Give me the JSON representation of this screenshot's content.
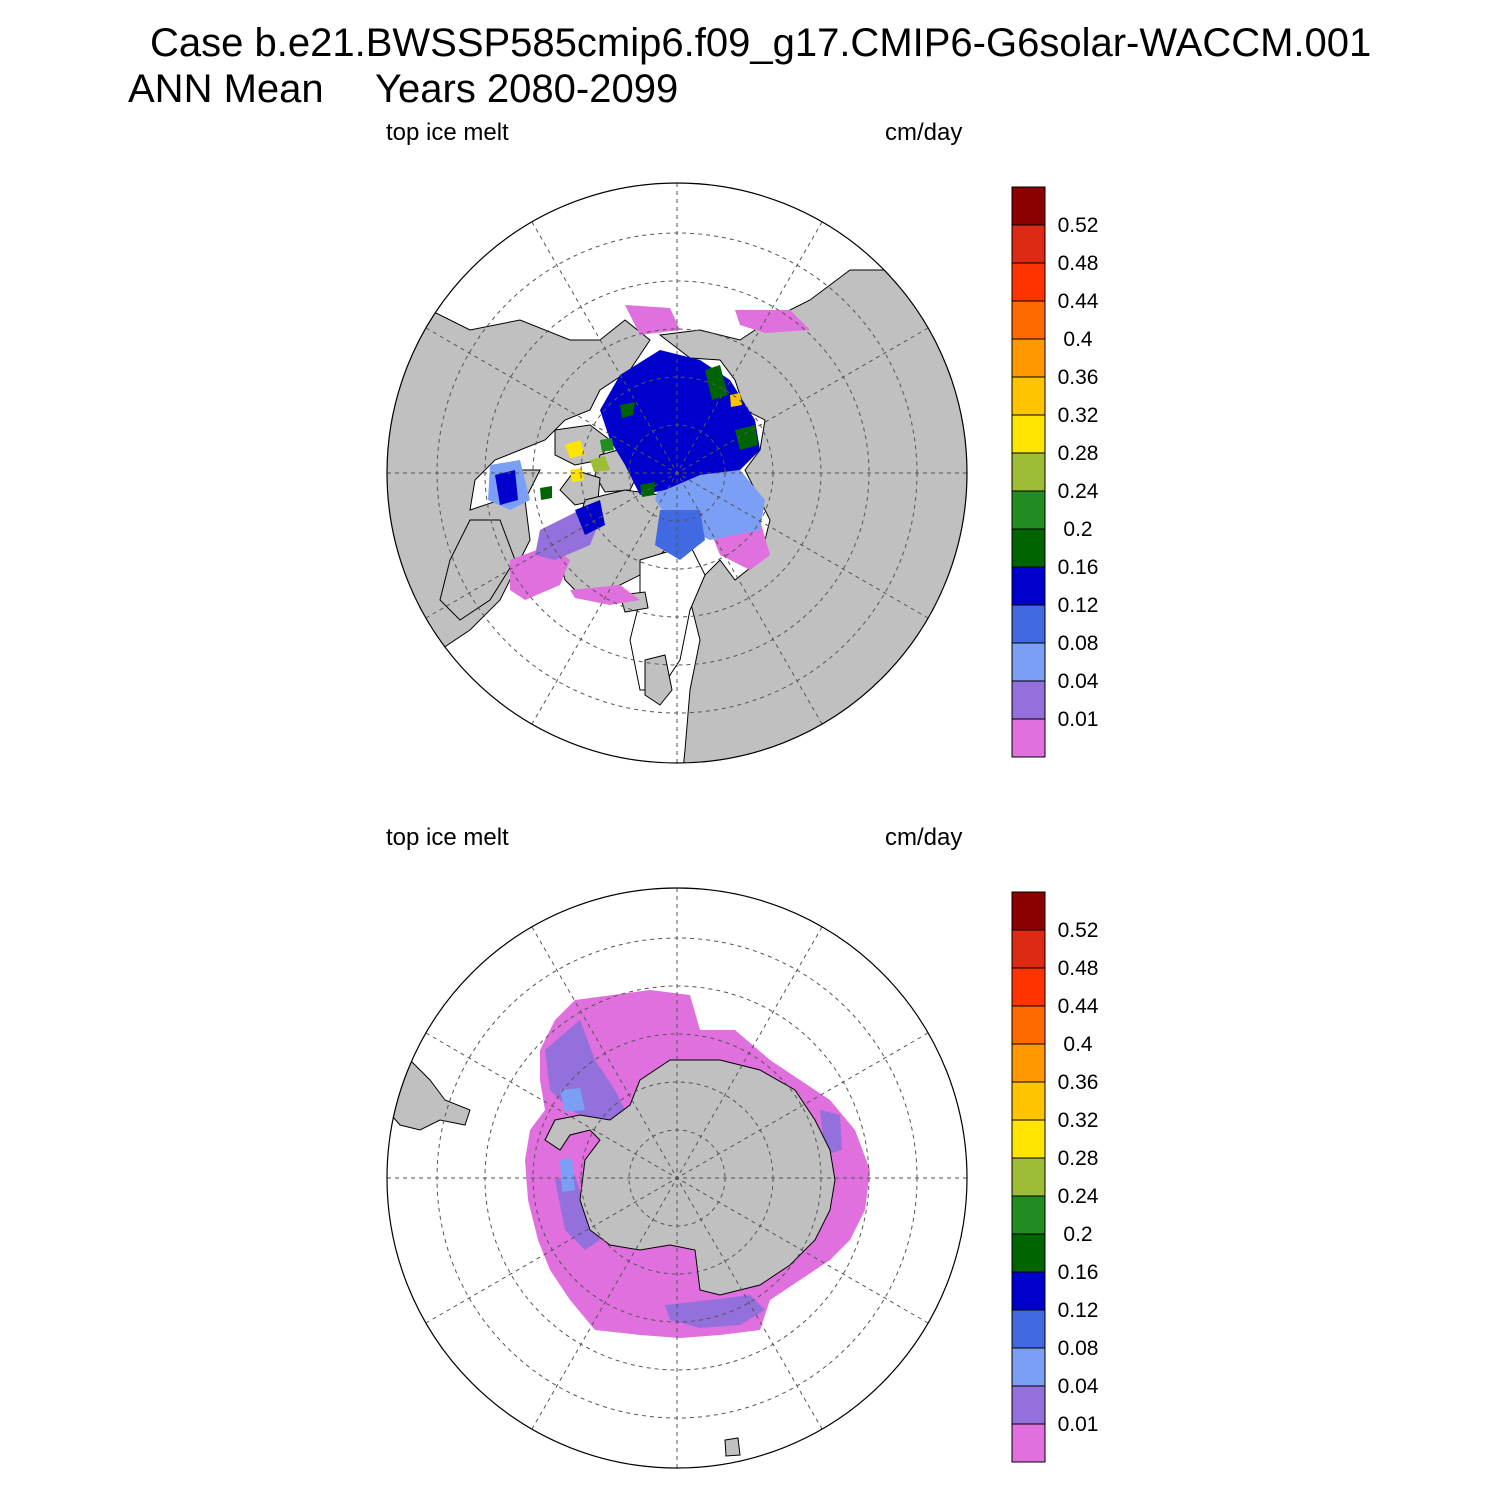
{
  "header": {
    "case_title": "Case b.e21.BWSSP585cmip6.f09_g17.CMIP6-G6solar-WACCM.001",
    "mean_label": "ANN Mean",
    "years_label": "Years 2080-2099"
  },
  "panels": [
    {
      "id": "north",
      "hemisphere": "Arctic",
      "variable_label": "top ice melt",
      "units_label": "cm/day"
    },
    {
      "id": "south",
      "hemisphere": "Antarctic",
      "variable_label": "top ice melt",
      "units_label": "cm/day"
    }
  ],
  "colorbar": {
    "levels": [
      "0.01",
      "0.04",
      "0.08",
      "0.12",
      "0.16",
      "0.2",
      "0.24",
      "0.28",
      "0.32",
      "0.36",
      "0.4",
      "0.44",
      "0.48",
      "0.52"
    ],
    "colors": [
      "#e070de",
      "#9370db",
      "#7b9ff5",
      "#4169e1",
      "#0000cd",
      "#006400",
      "#228b22",
      "#9cbd35",
      "#ffe400",
      "#ffc400",
      "#ff9800",
      "#ff6a00",
      "#ff3300",
      "#dc2a14",
      "#8b0000"
    ]
  },
  "map_style": {
    "land_color": "#c0c0c0",
    "ocean_color": "#ffffff",
    "grid_color": "#555555"
  }
}
